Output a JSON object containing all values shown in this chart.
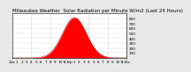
{
  "title": "Milwaukee Weather  Solar Radiation per Minute W/m2 (Last 24 Hours)",
  "title_fontsize": 4.0,
  "bg_color": "#e8e8e8",
  "plot_bg_color": "#ffffff",
  "fill_color": "#ff0000",
  "line_color": "#cc0000",
  "grid_color": "#bbbbbb",
  "axis_color": "#000000",
  "peak_value": 820,
  "num_points": 1440,
  "peak_hour": 13.0,
  "sigma_hours": 2.5,
  "ylim": [
    0,
    900
  ],
  "yticks": [
    100,
    200,
    300,
    400,
    500,
    600,
    700,
    800
  ],
  "xlim": [
    0,
    1439
  ],
  "tick_labelsize": 3.0,
  "grid_x_positions": [
    240,
    480,
    720,
    960,
    1200
  ],
  "x_tick_labels": [
    "12a",
    "1",
    "2",
    "3",
    "4",
    "5",
    "6",
    "7",
    "8",
    "9",
    "10",
    "11",
    "12p",
    "1",
    "2",
    "3",
    "4",
    "5",
    "6",
    "7",
    "8",
    "9",
    "10",
    "11",
    "12a"
  ],
  "x_tick_positions": [
    0,
    60,
    120,
    180,
    240,
    300,
    360,
    420,
    480,
    540,
    600,
    660,
    720,
    780,
    840,
    900,
    960,
    1020,
    1080,
    1140,
    1200,
    1260,
    1320,
    1380,
    1439
  ]
}
